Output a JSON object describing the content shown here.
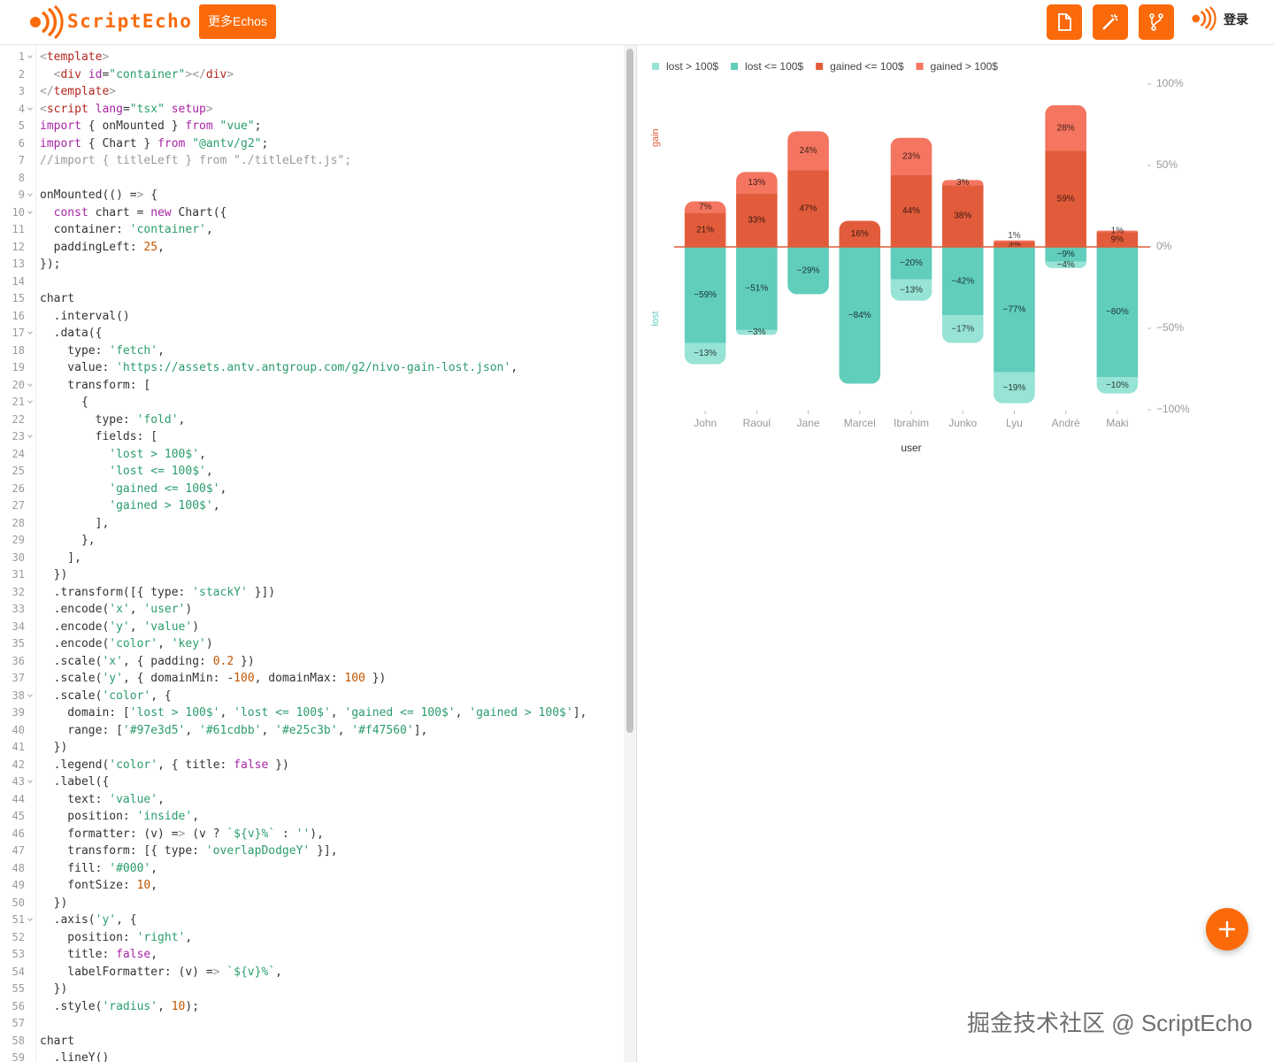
{
  "header": {
    "logo": "ScriptEcho",
    "more_button": "更多Echos",
    "login": "登录"
  },
  "code": {
    "lines": [
      {
        "no": 1,
        "text": "<template>",
        "fold": true
      },
      {
        "no": 2,
        "text": "  <div id=\"container\"></div>"
      },
      {
        "no": 3,
        "text": "</template>"
      },
      {
        "no": 4,
        "text": "<script lang=\"tsx\" setup>",
        "fold": true
      },
      {
        "no": 5,
        "text": "import { onMounted } from \"vue\";"
      },
      {
        "no": 6,
        "text": "import { Chart } from \"@antv/g2\";"
      },
      {
        "no": 7,
        "text": "//import { titleLeft } from \"./titleLeft.js\";"
      },
      {
        "no": 8
      },
      {
        "no": 9,
        "text": "onMounted(() => {",
        "fold": true
      },
      {
        "no": 10,
        "text": "  const chart = new Chart({",
        "fold": true
      },
      {
        "no": 11,
        "text": "  container: 'container',"
      },
      {
        "no": 12,
        "text": "  paddingLeft: 25,"
      },
      {
        "no": 13,
        "text": "});"
      },
      {
        "no": 14
      },
      {
        "no": 15,
        "text": "chart"
      },
      {
        "no": 16,
        "text": "  .interval()"
      },
      {
        "no": 17,
        "text": "  .data({",
        "fold": true
      },
      {
        "no": 18,
        "text": "    type: 'fetch',"
      },
      {
        "no": 19,
        "text": "    value: 'https://assets.antv.antgroup.com/g2/nivo-gain-lost.json',"
      },
      {
        "no": 20,
        "text": "    transform: [",
        "fold": true
      },
      {
        "no": 21,
        "text": "      {",
        "fold": true
      },
      {
        "no": 22,
        "text": "        type: 'fold',"
      },
      {
        "no": 23,
        "text": "        fields: [",
        "fold": true
      },
      {
        "no": 24,
        "text": "          'lost > 100$',"
      },
      {
        "no": 25,
        "text": "          'lost <= 100$',"
      },
      {
        "no": 26,
        "text": "          'gained <= 100$',"
      },
      {
        "no": 27,
        "text": "          'gained > 100$',"
      },
      {
        "no": 28,
        "text": "        ],"
      },
      {
        "no": 29,
        "text": "      },"
      },
      {
        "no": 30,
        "text": "    ],"
      },
      {
        "no": 31,
        "text": "  })"
      },
      {
        "no": 32,
        "text": "  .transform([{ type: 'stackY' }])"
      },
      {
        "no": 33,
        "text": "  .encode('x', 'user')"
      },
      {
        "no": 34,
        "text": "  .encode('y', 'value')"
      },
      {
        "no": 35,
        "text": "  .encode('color', 'key')"
      },
      {
        "no": 36,
        "text": "  .scale('x', { padding: 0.2 })"
      },
      {
        "no": 37,
        "text": "  .scale('y', { domainMin: -100, domainMax: 100 })"
      },
      {
        "no": 38,
        "text": "  .scale('color', {",
        "fold": true
      },
      {
        "no": 39,
        "text": "    domain: ['lost > 100$', 'lost <= 100$', 'gained <= 100$', 'gained > 100$'],"
      },
      {
        "no": 40,
        "text": "    range: ['#97e3d5', '#61cdbb', '#e25c3b', '#f47560'],"
      },
      {
        "no": 41,
        "text": "  })"
      },
      {
        "no": 42,
        "text": "  .legend('color', { title: false })"
      },
      {
        "no": 43,
        "text": "  .label({",
        "fold": true
      },
      {
        "no": 44,
        "text": "    text: 'value',"
      },
      {
        "no": 45,
        "text": "    position: 'inside',"
      },
      {
        "no": 46,
        "text": "    formatter: (v) => (v ? `${v}%` : ''),"
      },
      {
        "no": 47,
        "text": "    transform: [{ type: 'overlapDodgeY' }],"
      },
      {
        "no": 48,
        "text": "    fill: '#000',"
      },
      {
        "no": 49,
        "text": "    fontSize: 10,"
      },
      {
        "no": 50,
        "text": "  })"
      },
      {
        "no": 51,
        "text": "  .axis('y', {",
        "fold": true
      },
      {
        "no": 52,
        "text": "    position: 'right',"
      },
      {
        "no": 53,
        "text": "    title: false,"
      },
      {
        "no": 54,
        "text": "    labelFormatter: (v) => `${v}%`,"
      },
      {
        "no": 55,
        "text": "  })"
      },
      {
        "no": 56,
        "text": "  .style('radius', 10);"
      },
      {
        "no": 57
      },
      {
        "no": 58,
        "text": "chart"
      },
      {
        "no": 59,
        "text": "  .lineY()"
      }
    ]
  },
  "chart_data": {
    "type": "bar",
    "stacked": true,
    "categories": [
      "John",
      "Raoul",
      "Jane",
      "Marcel",
      "Ibrahim",
      "Junko",
      "Lyu",
      "André",
      "Maki"
    ],
    "series": [
      {
        "name": "lost > 100$",
        "color": "#97e3d5",
        "values": [
          -13,
          -3,
          0,
          0,
          -13,
          -17,
          -19,
          -4,
          -10
        ],
        "value_labels": [
          "−13%",
          "−3%",
          null,
          null,
          "−13%",
          "−17%",
          "−19%",
          "−4%",
          "−10%"
        ]
      },
      {
        "name": "lost <= 100$",
        "color": "#61cdbb",
        "values": [
          -59,
          -51,
          -29,
          -84,
          -20,
          -42,
          -77,
          -9,
          -80
        ],
        "value_labels": [
          "−59%",
          "−51%",
          "−29%",
          "−84%",
          "−20%",
          "−42%",
          "−77%",
          "−9%",
          "−80%"
        ]
      },
      {
        "name": "gained <= 100$",
        "color": "#e25c3b",
        "values": [
          21,
          33,
          47,
          16,
          44,
          38,
          3,
          59,
          9
        ],
        "value_labels": [
          "21%",
          "33%",
          "47%",
          "16%",
          "44%",
          "38%",
          "3%",
          "59%",
          "9%"
        ]
      },
      {
        "name": "gained > 100$",
        "color": "#f47560",
        "values": [
          7,
          13,
          24,
          0,
          23,
          3,
          1,
          28,
          1
        ],
        "value_labels": [
          "7%",
          "13%",
          "24%",
          null,
          "23%",
          "3%",
          "1%",
          "28%",
          "1%"
        ]
      }
    ],
    "ylim": [
      -100,
      100
    ],
    "yticks": [
      {
        "value": 100,
        "label": "100%"
      },
      {
        "value": 50,
        "label": "50%"
      },
      {
        "value": 0,
        "label": "0%"
      },
      {
        "value": -50,
        "label": "−50%"
      },
      {
        "value": -100,
        "label": "−100%"
      }
    ],
    "y_axis_position": "right",
    "x_label": "user",
    "legend": "top-left",
    "line_y": {
      "value": 0,
      "color": "#e25c3b"
    },
    "annotations": [
      {
        "text": "gain",
        "color": "#e25c3b"
      },
      {
        "text": "lost",
        "color": "#61cdbb"
      }
    ]
  },
  "watermark": "掘金技术社区 @ ScriptEcho"
}
